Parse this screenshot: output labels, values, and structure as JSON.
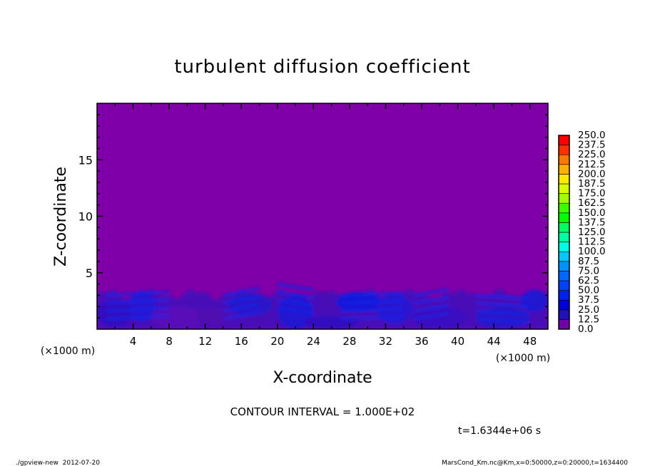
{
  "chart_data": {
    "type": "heatmap",
    "title": "turbulent diffusion coefficient",
    "xlabel": "X-coordinate",
    "ylabel": "Z-coordinate",
    "x_unit": "(×1000 m)",
    "y_unit": "(×1000 m)",
    "xlim": [
      0,
      50
    ],
    "ylim": [
      0,
      20
    ],
    "x_ticks": [
      4,
      8,
      12,
      16,
      20,
      24,
      28,
      32,
      36,
      40,
      44,
      48
    ],
    "y_ticks": [
      5,
      10,
      15
    ],
    "x_minor_step": 2,
    "y_minor_step": 1,
    "colorbar_levels": [
      "0.0",
      "12.5",
      "25.0",
      "37.5",
      "50.0",
      "62.5",
      "75.0",
      "87.5",
      "100.0",
      "112.5",
      "125.0",
      "137.5",
      "150.0",
      "162.5",
      "175.0",
      "187.5",
      "200.0",
      "212.5",
      "225.0",
      "237.5",
      "250.0"
    ],
    "colorbar_colors": [
      "#7000a8",
      "#2010b8",
      "#0000d8",
      "#0020f0",
      "#0040ff",
      "#0068ff",
      "#0090ff",
      "#00c8ff",
      "#00ffe0",
      "#00ffa0",
      "#00ff60",
      "#00ff00",
      "#40ff00",
      "#a0ff00",
      "#d8ff00",
      "#ffe800",
      "#ffb000",
      "#ff7800",
      "#ff3000",
      "#ff0000",
      "#ff5050",
      "#ff8080"
    ],
    "field_summary": "background 0.0–12.5 above z≈3.5; turbulent boundary layer below z≈3.5 with values up to ~37.5",
    "contour_interval": "CONTOUR INTERVAL = 1.000E+02",
    "time_label": "t=1.6344e+06 s"
  },
  "footer": {
    "left": "./gpview-new  2012-07-20",
    "right": "MarsCond_Km.nc@Km,x=0:50000,z=0:20000,t=1634400"
  }
}
